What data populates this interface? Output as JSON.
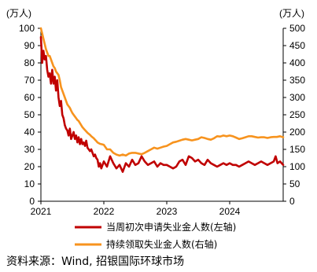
{
  "chart_data": {
    "type": "line",
    "left_unit": "(万人)",
    "right_unit": "(万人)",
    "left_ylim": [
      0,
      100
    ],
    "right_ylim": [
      0,
      500
    ],
    "left_ticks": [
      "0",
      "10",
      "20",
      "30",
      "40",
      "50",
      "60",
      "70",
      "80",
      "90",
      "100"
    ],
    "right_ticks": [
      "0",
      "50",
      "100",
      "150",
      "200",
      "250",
      "300",
      "350",
      "400",
      "450",
      "500"
    ],
    "x_ticks": [
      "2021",
      "2022",
      "2023",
      "2024"
    ],
    "xlim": [
      2021.0,
      2024.85
    ],
    "grid": false,
    "legend_position": "bottom",
    "series": [
      {
        "name": "当周初次申请失业金人数(左轴)",
        "axis": "left",
        "color": "#c00000",
        "x": [
          2021.0,
          2021.02,
          2021.04,
          2021.06,
          2021.08,
          2021.1,
          2021.12,
          2021.14,
          2021.16,
          2021.18,
          2021.2,
          2021.22,
          2021.24,
          2021.26,
          2021.28,
          2021.3,
          2021.32,
          2021.34,
          2021.36,
          2021.38,
          2021.4,
          2021.42,
          2021.44,
          2021.46,
          2021.48,
          2021.5,
          2021.52,
          2021.54,
          2021.56,
          2021.58,
          2021.6,
          2021.62,
          2021.64,
          2021.66,
          2021.68,
          2021.7,
          2021.72,
          2021.74,
          2021.76,
          2021.78,
          2021.8,
          2021.82,
          2021.84,
          2021.86,
          2021.88,
          2021.9,
          2021.92,
          2021.94,
          2021.96,
          2021.98,
          2022.0,
          2022.05,
          2022.1,
          2022.15,
          2022.2,
          2022.25,
          2022.3,
          2022.35,
          2022.4,
          2022.45,
          2022.5,
          2022.55,
          2022.6,
          2022.65,
          2022.7,
          2022.75,
          2022.8,
          2022.85,
          2022.9,
          2022.95,
          2023.0,
          2023.05,
          2023.1,
          2023.15,
          2023.2,
          2023.25,
          2023.3,
          2023.35,
          2023.4,
          2023.45,
          2023.5,
          2023.55,
          2023.6,
          2023.65,
          2023.7,
          2023.75,
          2023.8,
          2023.85,
          2023.9,
          2023.95,
          2024.0,
          2024.05,
          2024.1,
          2024.15,
          2024.2,
          2024.25,
          2024.3,
          2024.35,
          2024.4,
          2024.45,
          2024.5,
          2024.55,
          2024.6,
          2024.65,
          2024.7,
          2024.73,
          2024.76,
          2024.8,
          2024.85
        ],
        "values": [
          95,
          80,
          87,
          82,
          84,
          76,
          72,
          74,
          68,
          76,
          68,
          72,
          64,
          70,
          60,
          55,
          58,
          50,
          48,
          44,
          42,
          41,
          38,
          42,
          36,
          38,
          40,
          36,
          38,
          34,
          37,
          33,
          36,
          33,
          34,
          32,
          35,
          31,
          30,
          29,
          30,
          28,
          26,
          27,
          25,
          24,
          20,
          22,
          19,
          21,
          23,
          20,
          26,
          22,
          19,
          21,
          17,
          22,
          20,
          24,
          21,
          22,
          26,
          23,
          21,
          22,
          23,
          20,
          22,
          21,
          21,
          20,
          19,
          20,
          23,
          24,
          21,
          26,
          25,
          23,
          24,
          22,
          21,
          24,
          22,
          21,
          20,
          21,
          22,
          21,
          22,
          21,
          21,
          20,
          21,
          22,
          23,
          22,
          21,
          22,
          23,
          22,
          21,
          22,
          23,
          26,
          22,
          23,
          21
        ]
      },
      {
        "name": "持续领取失业金人数(右轴)",
        "axis": "right",
        "color": "#f7931e",
        "x": [
          2021.0,
          2021.02,
          2021.04,
          2021.06,
          2021.08,
          2021.1,
          2021.12,
          2021.14,
          2021.16,
          2021.18,
          2021.2,
          2021.22,
          2021.24,
          2021.26,
          2021.28,
          2021.3,
          2021.32,
          2021.34,
          2021.36,
          2021.38,
          2021.4,
          2021.42,
          2021.44,
          2021.46,
          2021.48,
          2021.5,
          2021.52,
          2021.54,
          2021.56,
          2021.58,
          2021.6,
          2021.62,
          2021.64,
          2021.66,
          2021.68,
          2021.7,
          2021.72,
          2021.74,
          2021.76,
          2021.78,
          2021.8,
          2021.82,
          2021.84,
          2021.86,
          2021.88,
          2021.9,
          2021.92,
          2021.94,
          2021.96,
          2021.98,
          2022.0,
          2022.05,
          2022.1,
          2022.15,
          2022.2,
          2022.25,
          2022.3,
          2022.35,
          2022.4,
          2022.45,
          2022.5,
          2022.55,
          2022.6,
          2022.65,
          2022.7,
          2022.75,
          2022.8,
          2022.85,
          2022.9,
          2022.95,
          2023.0,
          2023.05,
          2023.1,
          2023.15,
          2023.2,
          2023.25,
          2023.3,
          2023.35,
          2023.4,
          2023.45,
          2023.5,
          2023.55,
          2023.6,
          2023.65,
          2023.7,
          2023.75,
          2023.8,
          2023.85,
          2023.9,
          2023.95,
          2024.0,
          2024.05,
          2024.1,
          2024.15,
          2024.2,
          2024.25,
          2024.3,
          2024.35,
          2024.4,
          2024.45,
          2024.5,
          2024.55,
          2024.6,
          2024.65,
          2024.7,
          2024.75,
          2024.8,
          2024.85
        ],
        "values": [
          500,
          485,
          470,
          455,
          440,
          430,
          420,
          420,
          410,
          400,
          390,
          385,
          375,
          370,
          365,
          350,
          330,
          320,
          310,
          300,
          290,
          280,
          275,
          270,
          262,
          255,
          250,
          245,
          240,
          235,
          232,
          226,
          220,
          214,
          210,
          206,
          202,
          198,
          195,
          192,
          188,
          185,
          182,
          178,
          174,
          170,
          168,
          166,
          165,
          164,
          163,
          150,
          150,
          140,
          135,
          132,
          135,
          132,
          138,
          140,
          140,
          138,
          136,
          140,
          145,
          150,
          155,
          152,
          155,
          158,
          160,
          165,
          170,
          172,
          175,
          178,
          180,
          178,
          176,
          178,
          180,
          185,
          183,
          180,
          178,
          182,
          188,
          187,
          190,
          188,
          190,
          188,
          184,
          180,
          182,
          185,
          188,
          188,
          186,
          184,
          185,
          185,
          183,
          185,
          186,
          186,
          188,
          185
        ]
      }
    ]
  },
  "source_text": "资料来源：Wind, 招银国际环球市场"
}
